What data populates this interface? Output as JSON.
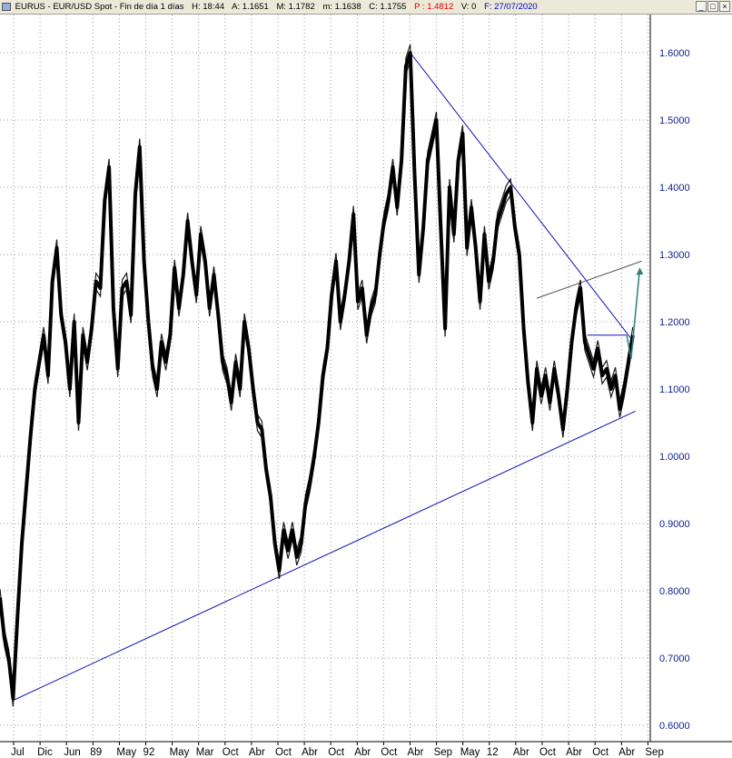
{
  "header": {
    "symbol": "EURUS - EUR/USD Spot - Fin de día 1 días",
    "hour": "H: 18:44",
    "open": "A: 1.1651",
    "high": "M: 1.1782",
    "low": "m: 1.1638",
    "close": "C: 1.1755",
    "pred": "P : 1.4812",
    "volume": "V: 0",
    "date": "F: 27/07/2020",
    "colors": {
      "text": "#000000",
      "pred": "#e00000",
      "date": "#0000c0"
    }
  },
  "window_controls": [
    "minimize-icon",
    "maximize-icon",
    "close-icon"
  ],
  "window_glyphs": [
    "_",
    "□",
    "×"
  ],
  "chart_data": {
    "type": "line",
    "ylim": [
      0.58,
      1.66
    ],
    "grid": true,
    "y_ticks": [
      "1.6000",
      "1.5000",
      "1.4000",
      "1.3000",
      "1.2000",
      "1.1000",
      "1.0000",
      "0.9000",
      "0.8000",
      "0.7000",
      "0.6000"
    ],
    "y_tick_values": [
      1.6,
      1.5,
      1.4,
      1.3,
      1.2,
      1.1,
      1.0,
      0.9,
      0.8,
      0.7,
      0.6
    ],
    "x_ticks": [
      "Jul",
      "Dic",
      "Jun",
      "89",
      "May",
      "92",
      "May",
      "Mar",
      "Oct",
      "Abr",
      "Oct",
      "Abr",
      "Oct",
      "Abr",
      "Oct",
      "Abr",
      "Sep",
      "May",
      "12",
      "Abr",
      "Oct",
      "Abr",
      "Oct",
      "Abr",
      "Sep"
    ],
    "series": [
      {
        "color": "#000000",
        "values": [
          [
            0,
            0.79
          ],
          [
            0.5,
            0.73
          ],
          [
            1,
            0.7
          ],
          [
            1.5,
            0.64
          ],
          [
            2,
            0.76
          ],
          [
            2.5,
            0.87
          ],
          [
            3,
            0.95
          ],
          [
            3.5,
            1.03
          ],
          [
            4,
            1.1
          ],
          [
            4.5,
            1.14
          ],
          [
            5,
            1.18
          ],
          [
            5.5,
            1.12
          ],
          [
            6,
            1.26
          ],
          [
            6.5,
            1.31
          ],
          [
            7,
            1.21
          ],
          [
            7.5,
            1.17
          ],
          [
            8,
            1.1
          ],
          [
            8.5,
            1.2
          ],
          [
            9,
            1.05
          ],
          [
            9.5,
            1.18
          ],
          [
            10,
            1.14
          ],
          [
            10.5,
            1.19
          ],
          [
            11,
            1.26
          ],
          [
            11.5,
            1.25
          ],
          [
            12,
            1.38
          ],
          [
            12.5,
            1.43
          ],
          [
            13,
            1.22
          ],
          [
            13.5,
            1.13
          ],
          [
            14,
            1.25
          ],
          [
            14.5,
            1.26
          ],
          [
            15,
            1.21
          ],
          [
            15.5,
            1.39
          ],
          [
            16,
            1.46
          ],
          [
            16.5,
            1.29
          ],
          [
            17,
            1.2
          ],
          [
            17.5,
            1.13
          ],
          [
            18,
            1.1
          ],
          [
            18.5,
            1.17
          ],
          [
            19,
            1.14
          ],
          [
            19.5,
            1.18
          ],
          [
            20,
            1.28
          ],
          [
            20.5,
            1.22
          ],
          [
            21,
            1.27
          ],
          [
            21.5,
            1.35
          ],
          [
            22,
            1.29
          ],
          [
            22.5,
            1.24
          ],
          [
            23,
            1.33
          ],
          [
            23.5,
            1.29
          ],
          [
            24,
            1.22
          ],
          [
            24.5,
            1.27
          ],
          [
            25,
            1.21
          ],
          [
            25.5,
            1.14
          ],
          [
            26,
            1.12
          ],
          [
            26.5,
            1.08
          ],
          [
            27,
            1.14
          ],
          [
            27.5,
            1.1
          ],
          [
            28,
            1.2
          ],
          [
            28.5,
            1.16
          ],
          [
            29,
            1.1
          ],
          [
            29.5,
            1.05
          ],
          [
            30,
            1.04
          ],
          [
            30.5,
            0.98
          ],
          [
            31,
            0.94
          ],
          [
            31.5,
            0.87
          ],
          [
            32,
            0.83
          ],
          [
            32.5,
            0.89
          ],
          [
            33,
            0.86
          ],
          [
            33.5,
            0.89
          ],
          [
            34,
            0.85
          ],
          [
            34.5,
            0.87
          ],
          [
            35,
            0.93
          ],
          [
            35.5,
            0.96
          ],
          [
            36,
            1.0
          ],
          [
            36.5,
            1.05
          ],
          [
            37,
            1.12
          ],
          [
            37.5,
            1.16
          ],
          [
            38,
            1.24
          ],
          [
            38.5,
            1.29
          ],
          [
            39,
            1.2
          ],
          [
            39.5,
            1.24
          ],
          [
            40,
            1.29
          ],
          [
            40.5,
            1.36
          ],
          [
            41,
            1.23
          ],
          [
            41.5,
            1.25
          ],
          [
            42,
            1.18
          ],
          [
            42.5,
            1.22
          ],
          [
            43,
            1.24
          ],
          [
            43.5,
            1.3
          ],
          [
            44,
            1.35
          ],
          [
            44.5,
            1.38
          ],
          [
            45,
            1.43
          ],
          [
            45.5,
            1.37
          ],
          [
            46,
            1.44
          ],
          [
            46.5,
            1.58
          ],
          [
            47,
            1.6
          ],
          [
            47.5,
            1.42
          ],
          [
            48,
            1.27
          ],
          [
            48.5,
            1.34
          ],
          [
            49,
            1.44
          ],
          [
            49.5,
            1.47
          ],
          [
            50,
            1.5
          ],
          [
            50.5,
            1.34
          ],
          [
            51,
            1.19
          ],
          [
            51.5,
            1.4
          ],
          [
            52,
            1.33
          ],
          [
            52.5,
            1.44
          ],
          [
            53,
            1.48
          ],
          [
            53.5,
            1.31
          ],
          [
            54,
            1.37
          ],
          [
            54.5,
            1.31
          ],
          [
            55,
            1.23
          ],
          [
            55.5,
            1.33
          ],
          [
            56,
            1.26
          ],
          [
            56.5,
            1.29
          ],
          [
            57,
            1.35
          ],
          [
            57.5,
            1.37
          ],
          [
            58,
            1.39
          ],
          [
            58.5,
            1.4
          ],
          [
            59,
            1.34
          ],
          [
            59.5,
            1.3
          ],
          [
            60,
            1.19
          ],
          [
            60.5,
            1.11
          ],
          [
            61,
            1.05
          ],
          [
            61.5,
            1.13
          ],
          [
            62,
            1.09
          ],
          [
            62.5,
            1.12
          ],
          [
            63,
            1.08
          ],
          [
            63.5,
            1.13
          ],
          [
            64,
            1.09
          ],
          [
            64.5,
            1.04
          ],
          [
            65,
            1.1
          ],
          [
            65.5,
            1.17
          ],
          [
            66,
            1.22
          ],
          [
            66.5,
            1.25
          ],
          [
            67,
            1.17
          ],
          [
            67.5,
            1.15
          ],
          [
            68,
            1.13
          ],
          [
            68.5,
            1.16
          ],
          [
            69,
            1.12
          ],
          [
            69.5,
            1.13
          ],
          [
            70,
            1.1
          ],
          [
            70.5,
            1.12
          ],
          [
            71,
            1.07
          ],
          [
            71.5,
            1.1
          ],
          [
            72,
            1.14
          ],
          [
            72.5,
            1.18
          ]
        ]
      }
    ],
    "trendlines": [
      {
        "color": "#1010b0",
        "points": [
          [
            1.5,
            0.637
          ],
          [
            72.8,
            1.067
          ]
        ]
      },
      {
        "color": "#1010b0",
        "points": [
          [
            47,
            1.6
          ],
          [
            72.6,
            1.17
          ]
        ]
      },
      {
        "color": "#505050",
        "points": [
          [
            61.5,
            1.235
          ],
          [
            73.5,
            1.29
          ]
        ]
      },
      {
        "color": "#1010b0",
        "points": [
          [
            67.3,
            1.18
          ],
          [
            71.8,
            1.18
          ]
        ]
      }
    ],
    "projection": {
      "color": "#2e7d7d",
      "points": [
        [
          71.8,
          1.18
        ],
        [
          72.3,
          1.145
        ],
        [
          73.3,
          1.28
        ]
      ]
    }
  }
}
